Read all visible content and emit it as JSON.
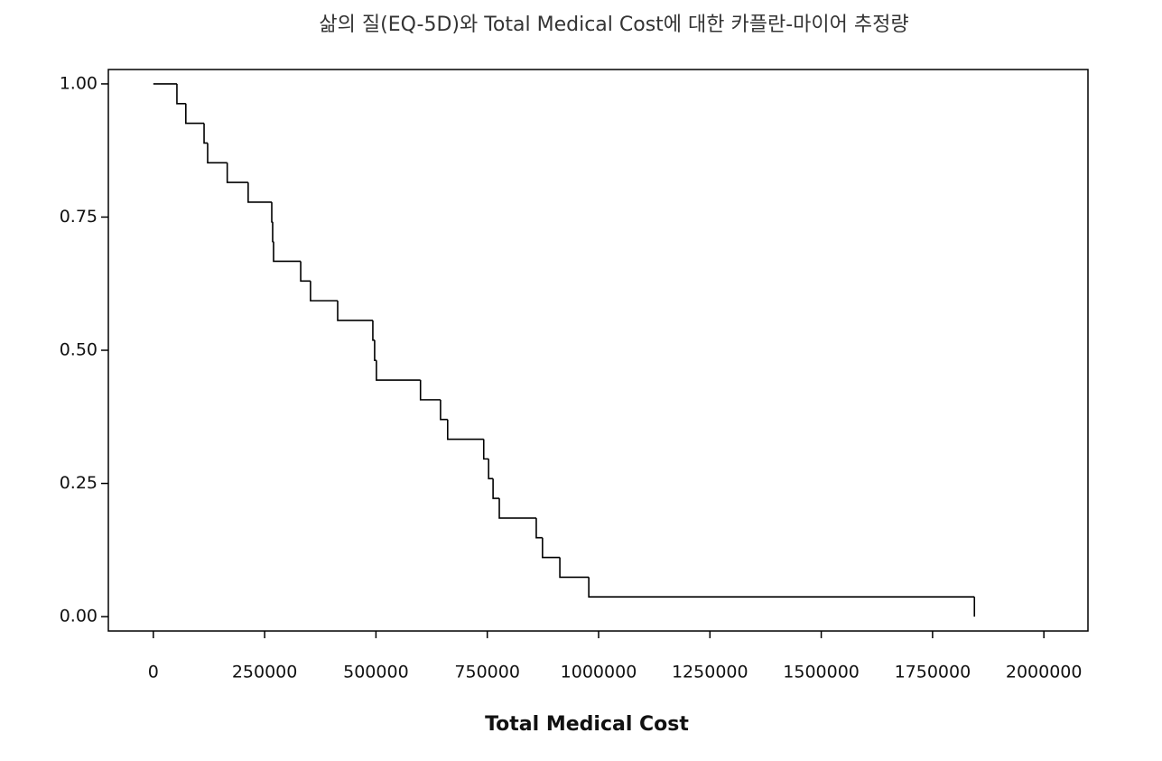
{
  "chart_data": {
    "type": "step",
    "title": "삶의 질(EQ-5D)와 Total Medical Cost에 대한 카플란-마이어 추정량",
    "x_label": "Total Medical Cost",
    "color": "#000000",
    "x": [
      0,
      53000,
      73000,
      114000,
      122000,
      166000,
      213000,
      266000,
      268000,
      270000,
      331000,
      353000,
      414000,
      493000,
      497000,
      501000,
      600000,
      645000,
      661000,
      742000,
      753000,
      763000,
      777000,
      860000,
      874000,
      913000,
      978000,
      1844000
    ],
    "values": [
      1.0,
      0.963,
      0.926,
      0.889,
      0.852,
      0.815,
      0.778,
      0.741,
      0.704,
      0.667,
      0.63,
      0.593,
      0.556,
      0.519,
      0.481,
      0.444,
      0.407,
      0.37,
      0.333,
      0.296,
      0.259,
      0.222,
      0.185,
      0.148,
      0.111,
      0.074,
      0.037,
      0.0
    ],
    "xlim": [
      -101000,
      2099000
    ],
    "xticks": [
      0,
      250000,
      500000,
      750000,
      1000000,
      1250000,
      1500000,
      1750000,
      2000000
    ],
    "ylim": [
      -0.027,
      1.027
    ],
    "yticks": [
      {
        "value": 0,
        "label": "0.00"
      },
      {
        "value": 0.25,
        "label": "0.25"
      },
      {
        "value": 0.5,
        "label": "0.50"
      },
      {
        "value": 0.75,
        "label": "0.75"
      },
      {
        "value": 1,
        "label": "1.00"
      }
    ]
  }
}
